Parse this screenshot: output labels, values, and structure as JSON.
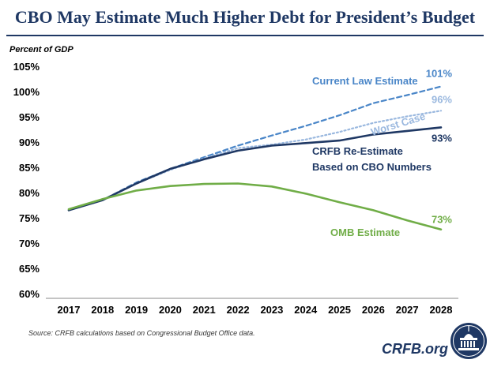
{
  "title": "CBO May Estimate Much Higher Debt for President’s Budget",
  "source": "Source: CRFB calculations based on Congressional Budget Office data.",
  "brand": "CRFB.org",
  "colors": {
    "title": "#1f3864",
    "current_law": "#4a86c8",
    "worst_case": "#9ab8df",
    "crfb": "#1f3864",
    "omb": "#70ad47"
  },
  "chart_data": {
    "type": "line",
    "ylabel": "Percent of GDP",
    "ylim": [
      60,
      105
    ],
    "yticks": [
      "60%",
      "65%",
      "70%",
      "75%",
      "80%",
      "85%",
      "90%",
      "95%",
      "100%",
      "105%"
    ],
    "x": [
      2017,
      2018,
      2019,
      2020,
      2021,
      2022,
      2023,
      2024,
      2025,
      2026,
      2027,
      2028
    ],
    "grid": false,
    "series": [
      {
        "name": "Current Law Estimate",
        "end_label": "101%",
        "values": [
          76.5,
          78.5,
          82.0,
          84.7,
          87.0,
          89.3,
          91.3,
          93.2,
          95.3,
          97.7,
          99.3,
          101.0
        ]
      },
      {
        "name": "Worst Case",
        "end_label": "96%",
        "values": [
          76.5,
          78.5,
          81.8,
          84.5,
          86.8,
          88.8,
          89.5,
          90.5,
          92.0,
          93.8,
          95.1,
          96.2
        ]
      },
      {
        "name": "CRFB Re-Estimate Based on CBO Numbers",
        "name_lines": [
          "CRFB Re-Estimate",
          "Based on CBO Numbers"
        ],
        "end_label": "93%",
        "values": [
          76.5,
          78.5,
          81.8,
          84.7,
          86.6,
          88.3,
          89.3,
          89.8,
          90.3,
          91.5,
          92.2,
          92.9
        ]
      },
      {
        "name": "OMB Estimate",
        "end_label": "73%",
        "values": [
          76.7,
          78.7,
          80.4,
          81.3,
          81.7,
          81.8,
          81.2,
          79.8,
          78.1,
          76.5,
          74.5,
          72.7
        ]
      }
    ]
  }
}
